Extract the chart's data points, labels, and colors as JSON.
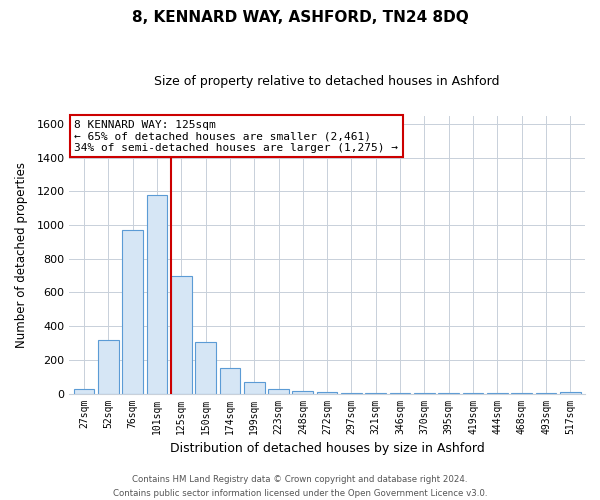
{
  "title": "8, KENNARD WAY, ASHFORD, TN24 8DQ",
  "subtitle": "Size of property relative to detached houses in Ashford",
  "xlabel": "Distribution of detached houses by size in Ashford",
  "ylabel": "Number of detached properties",
  "bar_labels": [
    "27sqm",
    "52sqm",
    "76sqm",
    "101sqm",
    "125sqm",
    "150sqm",
    "174sqm",
    "199sqm",
    "223sqm",
    "248sqm",
    "272sqm",
    "297sqm",
    "321sqm",
    "346sqm",
    "370sqm",
    "395sqm",
    "419sqm",
    "444sqm",
    "468sqm",
    "493sqm",
    "517sqm"
  ],
  "bar_values": [
    25,
    320,
    970,
    1180,
    700,
    305,
    150,
    70,
    25,
    15,
    10,
    5,
    3,
    2,
    2,
    2,
    1,
    1,
    1,
    1,
    10
  ],
  "bar_color_face": "#d6e6f5",
  "bar_color_edge": "#5b9bd5",
  "highlight_index": 4,
  "highlight_color": "#cc0000",
  "annotation_title": "8 KENNARD WAY: 125sqm",
  "annotation_line1": "← 65% of detached houses are smaller (2,461)",
  "annotation_line2": "34% of semi-detached houses are larger (1,275) →",
  "annotation_box_color": "#ffffff",
  "annotation_box_edge": "#cc0000",
  "ylim": [
    0,
    1650
  ],
  "yticks": [
    0,
    200,
    400,
    600,
    800,
    1000,
    1200,
    1400,
    1600
  ],
  "footer_line1": "Contains HM Land Registry data © Crown copyright and database right 2024.",
  "footer_line2": "Contains public sector information licensed under the Open Government Licence v3.0.",
  "background_color": "#ffffff",
  "grid_color": "#c8d0da"
}
